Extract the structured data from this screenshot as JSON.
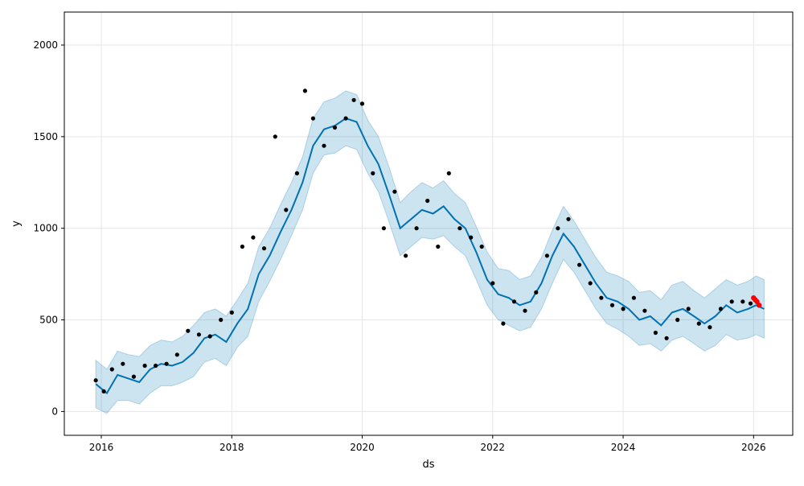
{
  "chart_data": {
    "type": "line",
    "title": "",
    "xlabel": "ds",
    "ylabel": "y",
    "x_range": [
      "2015-06-08",
      "2026-08-08"
    ],
    "ylim": [
      -130,
      2180
    ],
    "x_ticks": [
      "2016",
      "2018",
      "2020",
      "2022",
      "2024",
      "2026"
    ],
    "y_ticks": [
      0,
      500,
      1000,
      1500,
      2000
    ],
    "grid": true,
    "legend": "none",
    "colors": {
      "forecast_line": "#0072B2",
      "uncertainty_band": "#0072B2",
      "observed_points": "#000000",
      "recent_points": "#FF0000",
      "grid": "#e6e6e6"
    },
    "series": [
      {
        "kind": "forecast_yhat",
        "x": [
          "2015-12-01",
          "2016-02-01",
          "2016-04-01",
          "2016-06-01",
          "2016-08-01",
          "2016-10-01",
          "2016-12-01",
          "2017-02-01",
          "2017-04-01",
          "2017-06-01",
          "2017-08-01",
          "2017-10-01",
          "2017-12-01",
          "2018-02-01",
          "2018-04-01",
          "2018-06-01",
          "2018-08-01",
          "2018-10-01",
          "2018-12-01",
          "2019-02-01",
          "2019-04-01",
          "2019-06-01",
          "2019-08-01",
          "2019-10-01",
          "2019-12-01",
          "2020-02-01",
          "2020-04-01",
          "2020-06-01",
          "2020-08-01",
          "2020-10-01",
          "2020-12-01",
          "2021-02-01",
          "2021-04-01",
          "2021-06-01",
          "2021-08-01",
          "2021-10-01",
          "2021-12-01",
          "2022-02-01",
          "2022-04-01",
          "2022-06-01",
          "2022-08-01",
          "2022-10-01",
          "2022-12-01",
          "2023-02-01",
          "2023-04-01",
          "2023-06-01",
          "2023-08-01",
          "2023-10-01",
          "2023-12-01",
          "2024-02-01",
          "2024-04-01",
          "2024-06-01",
          "2024-08-01",
          "2024-10-01",
          "2024-12-01",
          "2025-02-01",
          "2025-04-01",
          "2025-06-01",
          "2025-08-01",
          "2025-10-01",
          "2025-12-01",
          "2026-01-15",
          "2026-03-01"
        ],
        "y": [
          150,
          100,
          200,
          180,
          160,
          230,
          260,
          250,
          270,
          320,
          400,
          420,
          380,
          480,
          560,
          750,
          850,
          980,
          1100,
          1250,
          1450,
          1540,
          1560,
          1600,
          1580,
          1450,
          1350,
          1180,
          1000,
          1050,
          1100,
          1080,
          1120,
          1050,
          1000,
          870,
          720,
          640,
          620,
          580,
          600,
          700,
          850,
          970,
          900,
          800,
          700,
          620,
          600,
          560,
          500,
          520,
          470,
          540,
          560,
          520,
          480,
          520,
          580,
          540,
          560,
          580,
          560
        ],
        "y_lower": [
          20,
          -10,
          60,
          60,
          40,
          100,
          140,
          140,
          160,
          190,
          270,
          290,
          250,
          350,
          410,
          600,
          710,
          830,
          960,
          1100,
          1300,
          1400,
          1410,
          1450,
          1430,
          1300,
          1200,
          1030,
          850,
          900,
          950,
          940,
          960,
          900,
          850,
          720,
          580,
          500,
          470,
          440,
          460,
          560,
          700,
          830,
          760,
          660,
          560,
          480,
          450,
          410,
          360,
          370,
          330,
          390,
          410,
          370,
          330,
          360,
          420,
          390,
          400,
          420,
          400
        ],
        "y_upper": [
          280,
          230,
          330,
          310,
          300,
          360,
          390,
          380,
          410,
          470,
          540,
          560,
          520,
          610,
          700,
          900,
          1000,
          1130,
          1250,
          1390,
          1600,
          1690,
          1710,
          1750,
          1730,
          1590,
          1500,
          1330,
          1140,
          1200,
          1250,
          1220,
          1260,
          1190,
          1140,
          1010,
          870,
          780,
          770,
          720,
          740,
          840,
          990,
          1120,
          1040,
          940,
          840,
          760,
          740,
          710,
          650,
          660,
          610,
          690,
          710,
          660,
          620,
          670,
          720,
          690,
          710,
          740,
          720
        ]
      },
      {
        "kind": "observed",
        "x": [
          "2015-12-01",
          "2016-01-15",
          "2016-03-01",
          "2016-05-01",
          "2016-07-01",
          "2016-09-01",
          "2016-11-01",
          "2017-01-01",
          "2017-03-01",
          "2017-05-01",
          "2017-07-01",
          "2017-09-01",
          "2017-11-01",
          "2018-01-01",
          "2018-03-01",
          "2018-05-01",
          "2018-07-01",
          "2018-09-01",
          "2018-11-01",
          "2019-01-01",
          "2019-02-15",
          "2019-04-01",
          "2019-06-01",
          "2019-08-01",
          "2019-10-01",
          "2019-11-15",
          "2020-01-01",
          "2020-03-01",
          "2020-05-01",
          "2020-07-01",
          "2020-09-01",
          "2020-11-01",
          "2021-01-01",
          "2021-03-01",
          "2021-05-01",
          "2021-07-01",
          "2021-09-01",
          "2021-11-01",
          "2022-01-01",
          "2022-03-01",
          "2022-05-01",
          "2022-07-01",
          "2022-09-01",
          "2022-11-01",
          "2023-01-01",
          "2023-03-01",
          "2023-05-01",
          "2023-07-01",
          "2023-09-01",
          "2023-11-01",
          "2024-01-01",
          "2024-03-01",
          "2024-05-01",
          "2024-07-01",
          "2024-09-01",
          "2024-11-01",
          "2025-01-01",
          "2025-03-01",
          "2025-05-01",
          "2025-07-01",
          "2025-09-01",
          "2025-11-01",
          "2025-12-15"
        ],
        "y": [
          170,
          110,
          230,
          260,
          190,
          250,
          250,
          260,
          310,
          440,
          420,
          410,
          500,
          540,
          900,
          950,
          890,
          1500,
          1100,
          1300,
          1750,
          1600,
          1450,
          1550,
          1600,
          1700,
          1680,
          1300,
          1000,
          1200,
          850,
          1000,
          1150,
          900,
          1300,
          1000,
          950,
          900,
          700,
          480,
          600,
          550,
          650,
          850,
          1000,
          1050,
          800,
          700,
          620,
          580,
          560,
          620,
          550,
          430,
          400,
          500,
          560,
          480,
          460,
          560,
          600,
          600,
          590
        ]
      },
      {
        "kind": "recent",
        "x": [
          "2026-01-01",
          "2026-01-10",
          "2026-01-20",
          "2026-02-01"
        ],
        "y": [
          620,
          610,
          600,
          580
        ]
      }
    ]
  }
}
